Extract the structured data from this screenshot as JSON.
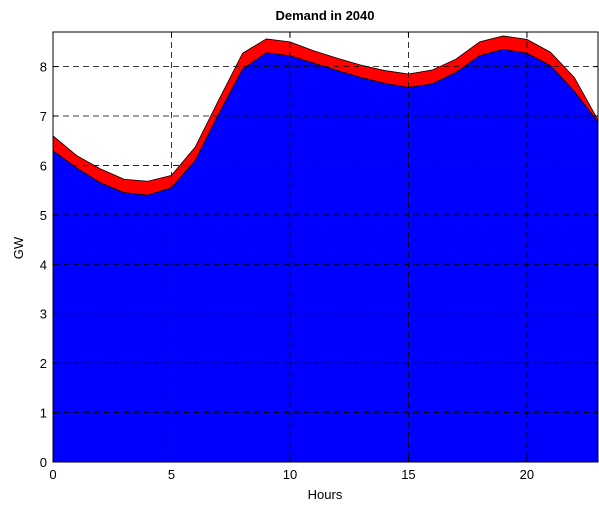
{
  "chart_data": {
    "type": "area",
    "title": "Demand in 2040",
    "xlabel": "Hours",
    "ylabel": "GW",
    "xlim": [
      0,
      23
    ],
    "ylim": [
      0,
      8.7
    ],
    "x_ticks": [
      0,
      5,
      10,
      15,
      20
    ],
    "y_ticks": [
      0,
      1,
      2,
      3,
      4,
      5,
      6,
      7,
      8
    ],
    "grid": true,
    "stacked": true,
    "x": [
      0,
      1,
      2,
      3,
      4,
      5,
      6,
      7,
      8,
      9,
      10,
      11,
      12,
      13,
      14,
      15,
      16,
      17,
      18,
      19,
      20,
      21,
      22,
      23
    ],
    "series": [
      {
        "color": "#0000ff",
        "values": [
          6.3,
          5.95,
          5.65,
          5.45,
          5.4,
          5.55,
          6.1,
          7.05,
          7.95,
          8.28,
          8.22,
          8.07,
          7.92,
          7.78,
          7.66,
          7.58,
          7.65,
          7.88,
          8.22,
          8.35,
          8.27,
          8.02,
          7.5,
          6.88
        ]
      },
      {
        "color": "#ff0000",
        "values": [
          0.3,
          0.25,
          0.28,
          0.27,
          0.28,
          0.25,
          0.27,
          0.28,
          0.32,
          0.28,
          0.28,
          0.25,
          0.25,
          0.25,
          0.26,
          0.27,
          0.28,
          0.27,
          0.28,
          0.27,
          0.28,
          0.27,
          0.28,
          0.04
        ]
      }
    ]
  }
}
